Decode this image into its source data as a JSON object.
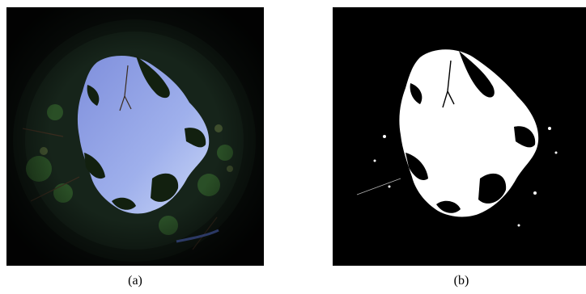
{
  "figure": {
    "panels": [
      {
        "caption": "(a)",
        "content": "fisheye-canopy-photo"
      },
      {
        "caption": "(b)",
        "content": "binary-sky-mask"
      }
    ],
    "colors": {
      "sky_top": "#8c99e0",
      "sky_bottom": "#b9c9f2",
      "canopy_dark": "#0b1410",
      "foliage": "#24401f",
      "mask_sky": "#ffffff",
      "mask_canopy": "#000000"
    }
  }
}
